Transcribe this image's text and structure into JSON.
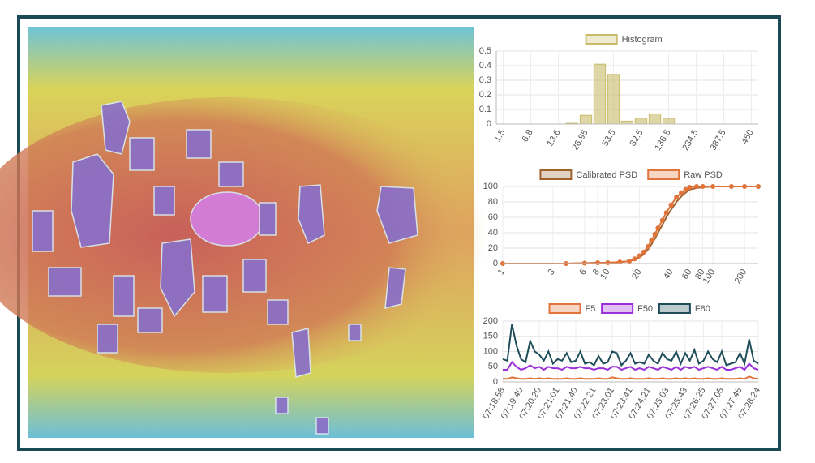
{
  "chart_data": [
    {
      "type": "bar",
      "categories": [
        "1.5",
        null,
        "6.8",
        null,
        "13.6",
        null,
        "26.95",
        null,
        "53.5",
        null,
        "82.5",
        null,
        "136.5",
        null,
        "234.5",
        null,
        "387.5",
        null,
        "450"
      ],
      "series": [
        {
          "name": "Histogram",
          "color": "#c9bb6a",
          "values": [
            0,
            0,
            0,
            0,
            0,
            0.005,
            0.06,
            0.41,
            0.34,
            0.02,
            0.04,
            0.07,
            0.04,
            0,
            0,
            0,
            0,
            0,
            0
          ]
        }
      ],
      "ylim": [
        0,
        0.5
      ],
      "yticks": [
        0,
        0.1,
        0.2,
        0.3,
        0.4,
        0.5
      ],
      "grid": true
    },
    {
      "type": "line",
      "xscale": "log",
      "x": [
        1,
        4,
        6,
        8,
        10,
        13,
        16,
        18,
        20,
        22,
        24,
        26,
        28,
        30,
        33,
        36,
        40,
        45,
        50,
        55,
        60,
        70,
        80,
        100,
        150,
        200,
        270
      ],
      "series": [
        {
          "name": "Calibrated PSD",
          "color": "#a0622d",
          "values": [
            0,
            0,
            0.5,
            1,
            1,
            2,
            3,
            5,
            8,
            12,
            18,
            25,
            32,
            40,
            50,
            60,
            70,
            80,
            87,
            92,
            96,
            98,
            99,
            100,
            100,
            100,
            100
          ]
        },
        {
          "name": "Raw PSD",
          "color": "#e0743a",
          "markers": true,
          "values": [
            0,
            0,
            0.5,
            1,
            1,
            2,
            3,
            6,
            10,
            15,
            22,
            30,
            38,
            46,
            56,
            66,
            76,
            86,
            92,
            96,
            99,
            100,
            100,
            100,
            100,
            100,
            100
          ]
        }
      ],
      "xlim": [
        1,
        270
      ],
      "xticks": [
        1,
        3,
        6,
        8,
        10,
        20,
        40,
        60,
        80,
        100,
        200
      ],
      "ylim": [
        0,
        100
      ],
      "yticks": [
        0,
        20,
        40,
        60,
        80,
        100
      ],
      "grid": true
    },
    {
      "type": "line",
      "categories": [
        "07:18:58",
        null,
        null,
        null,
        "07:19:40",
        null,
        null,
        null,
        "07:20:20",
        null,
        null,
        null,
        "07:21:01",
        null,
        null,
        null,
        "07:21:40",
        null,
        null,
        null,
        "07:22:21",
        null,
        null,
        null,
        "07:23:01",
        null,
        null,
        null,
        "07:23:41",
        null,
        null,
        null,
        "07:24:21",
        null,
        null,
        null,
        "07:25:03",
        null,
        null,
        null,
        "07:25:43",
        null,
        null,
        null,
        "07:26:25",
        null,
        null,
        null,
        "07:27:05",
        null,
        null,
        null,
        "07:27:46",
        null,
        null,
        null,
        "07:28:24"
      ],
      "series": [
        {
          "name": "F5:",
          "color": "#e0743a",
          "values": [
            10,
            10,
            15,
            12,
            10,
            10,
            12,
            10,
            12,
            10,
            12,
            10,
            10,
            10,
            12,
            10,
            10,
            12,
            10,
            10,
            10,
            12,
            10,
            10,
            15,
            12,
            10,
            10,
            12,
            10,
            10,
            10,
            12,
            10,
            10,
            12,
            10,
            10,
            12,
            10,
            12,
            10,
            12,
            10,
            10,
            12,
            10,
            10,
            12,
            10,
            10,
            10,
            12,
            10,
            18,
            12,
            10
          ]
        },
        {
          "name": "F50:",
          "color": "#9b30d9",
          "values": [
            40,
            40,
            65,
            50,
            40,
            45,
            55,
            45,
            50,
            40,
            50,
            45,
            45,
            40,
            50,
            45,
            45,
            50,
            45,
            45,
            40,
            45,
            45,
            40,
            50,
            50,
            40,
            45,
            50,
            40,
            45,
            40,
            50,
            45,
            40,
            50,
            45,
            40,
            50,
            40,
            50,
            45,
            50,
            40,
            45,
            50,
            45,
            40,
            50,
            40,
            40,
            45,
            50,
            40,
            60,
            45,
            40
          ]
        },
        {
          "name": "F80",
          "color": "#1f4e5a",
          "values": [
            75,
            70,
            190,
            120,
            75,
            65,
            135,
            100,
            90,
            70,
            100,
            60,
            75,
            70,
            95,
            65,
            70,
            100,
            60,
            65,
            55,
            85,
            60,
            65,
            100,
            95,
            55,
            70,
            95,
            60,
            65,
            60,
            90,
            70,
            60,
            95,
            75,
            70,
            100,
            60,
            95,
            70,
            105,
            60,
            70,
            100,
            75,
            65,
            100,
            55,
            60,
            65,
            95,
            60,
            140,
            70,
            60
          ]
        }
      ],
      "ylim": [
        0,
        200
      ],
      "yticks": [
        0,
        50,
        100,
        150,
        200
      ],
      "grid": true
    }
  ]
}
